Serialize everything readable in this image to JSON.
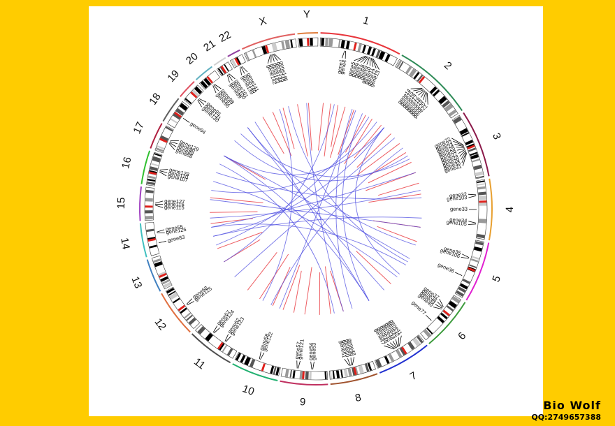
{
  "watermark": {
    "title": "Bio  Wolf",
    "contact": "QQ:2749657388"
  },
  "colors": {
    "background": "#FFCC00",
    "panel": "#FFFFFF",
    "intra_link": "#E8353B",
    "inter_link": "#4A4AE0",
    "centromere": "#E0201B"
  },
  "chromosomes": [
    {
      "name": "1",
      "color": "#E8353B"
    },
    {
      "name": "2",
      "color": "#2E8B57"
    },
    {
      "name": "3",
      "color": "#8B1A4A"
    },
    {
      "name": "4",
      "color": "#E8A030"
    },
    {
      "name": "5",
      "color": "#E020D0"
    },
    {
      "name": "6",
      "color": "#3A9A3A"
    },
    {
      "name": "7",
      "color": "#2030D0"
    },
    {
      "name": "8",
      "color": "#A0522D"
    },
    {
      "name": "9",
      "color": "#C03060"
    },
    {
      "name": "10",
      "color": "#20B070"
    },
    {
      "name": "11",
      "color": "#505050"
    },
    {
      "name": "12",
      "color": "#E07040"
    },
    {
      "name": "13",
      "color": "#4080C0"
    },
    {
      "name": "14",
      "color": "#40C0C0"
    },
    {
      "name": "15",
      "color": "#A040C0"
    },
    {
      "name": "16",
      "color": "#30C030"
    },
    {
      "name": "17",
      "color": "#B02040"
    },
    {
      "name": "18",
      "color": "#606060"
    },
    {
      "name": "19",
      "color": "#E05060"
    },
    {
      "name": "20",
      "color": "#60B0C0"
    },
    {
      "name": "21",
      "color": "#D0D0D0"
    },
    {
      "name": "22",
      "color": "#9040A0"
    },
    {
      "name": "X",
      "color": "#E06060"
    },
    {
      "name": "Y",
      "color": "#E08040"
    }
  ],
  "gene_labels": [
    {
      "chrom": "1",
      "genes": [
        "gene1",
        "gene4"
      ]
    },
    {
      "chrom": "1",
      "genes": [
        "gene5",
        "gene6",
        "gene7",
        "gene8",
        "gene9",
        "gene10",
        "gene11",
        "gene12",
        "gene13"
      ]
    },
    {
      "chrom": "2",
      "genes": [
        "gene14",
        "gene15",
        "gene16",
        "gene17",
        "gene18",
        "gene19",
        "gene20",
        "gene21"
      ]
    },
    {
      "chrom": "3",
      "genes": [
        "gene22",
        "gene23",
        "gene24",
        "gene25",
        "gene26",
        "gene27",
        "gene28",
        "gene29",
        "gene30",
        "gene31"
      ]
    },
    {
      "chrom": "4",
      "genes": [
        "gene32",
        "gene103"
      ]
    },
    {
      "chrom": "4",
      "genes": [
        "gene33"
      ]
    },
    {
      "chrom": "4",
      "genes": [
        "gene34",
        "gene105"
      ]
    },
    {
      "chrom": "5",
      "genes": [
        "gene35",
        "gene106"
      ]
    },
    {
      "chrom": "5",
      "genes": [
        "gene36"
      ]
    },
    {
      "chrom": "6",
      "genes": [
        "gene37",
        "gene38",
        "gene39",
        "gene40"
      ]
    },
    {
      "chrom": "6",
      "genes": [
        "gene77"
      ]
    },
    {
      "chrom": "7",
      "genes": [
        "gene41",
        "gene42",
        "gene43",
        "gene44",
        "gene45",
        "gene46",
        "gene47"
      ]
    },
    {
      "chrom": "8",
      "genes": [
        "gene48",
        "gene49",
        "gene50",
        "gene51"
      ]
    },
    {
      "chrom": "9",
      "genes": [
        "gene53",
        "gene54"
      ]
    },
    {
      "chrom": "9",
      "genes": [
        "gene121",
        "gene57"
      ]
    },
    {
      "chrom": "10",
      "genes": [
        "gene122",
        "gene58"
      ]
    },
    {
      "chrom": "11",
      "genes": [
        "gene123",
        "gene62"
      ]
    },
    {
      "chrom": "11",
      "genes": [
        "gene124",
        "gene67"
      ]
    },
    {
      "chrom": "12",
      "genes": [
        "gene125",
        "gene68"
      ]
    },
    {
      "chrom": "14",
      "genes": [
        "gene83"
      ]
    },
    {
      "chrom": "14",
      "genes": [
        "gene126",
        "gene55"
      ]
    },
    {
      "chrom": "15",
      "genes": [
        "gene115",
        "gene116",
        "gene127"
      ]
    },
    {
      "chrom": "16",
      "genes": [
        "gene107",
        "gene110",
        "gene128"
      ]
    },
    {
      "chrom": "17",
      "genes": [
        "gene88",
        "gene89",
        "gene90",
        "gene129"
      ]
    },
    {
      "chrom": "18",
      "genes": [
        "gene94"
      ]
    },
    {
      "chrom": "19",
      "genes": [
        "gene130",
        "gene131",
        "gene95"
      ]
    },
    {
      "chrom": "20",
      "genes": [
        "gene96",
        "gene97",
        "gene98"
      ]
    },
    {
      "chrom": "21",
      "genes": [
        "gene99",
        "gene100",
        "gene101"
      ]
    },
    {
      "chrom": "22",
      "genes": [
        "gene139",
        "gene140",
        "gene141"
      ]
    },
    {
      "chrom": "X",
      "genes": [
        "gene142",
        "gene143",
        "gene144",
        "gene145",
        "gene146"
      ]
    }
  ]
}
